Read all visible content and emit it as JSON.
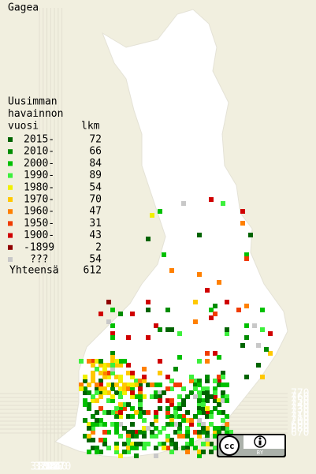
{
  "map": {
    "title": "Gagea",
    "legend": {
      "header": [
        "Uusimman",
        "havainnon",
        "vuosi"
      ],
      "count_header": "lkm",
      "entries": [
        {
          "label": "2015-",
          "count": 72,
          "color": "#006400"
        },
        {
          "label": "2010-",
          "count": 66,
          "color": "#008c00"
        },
        {
          "label": "2000-",
          "count": 84,
          "color": "#00c000"
        },
        {
          "label": "1990-",
          "count": 89,
          "color": "#3cf03c"
        },
        {
          "label": "1980-",
          "count": 54,
          "color": "#f0f000"
        },
        {
          "label": "1970-",
          "count": 70,
          "color": "#ffc800"
        },
        {
          "label": "1960-",
          "count": 47,
          "color": "#ff8000"
        },
        {
          "label": "1950-",
          "count": 31,
          "color": "#f03c00"
        },
        {
          "label": "1900-",
          "count": 43,
          "color": "#d00000"
        },
        {
          "label": "-1899",
          "count": 2,
          "color": "#900000"
        },
        {
          "label": "???",
          "count": 54,
          "color": "#c8c8c8"
        }
      ],
      "total_label": "Yhteensä",
      "total": 612
    },
    "xticks": [
      310,
      320,
      330,
      340,
      350,
      360,
      370
    ],
    "yticks": [
      670,
      680,
      690,
      700,
      710,
      720,
      730,
      740,
      750,
      760,
      770
    ],
    "license": {
      "icon": "cc",
      "label": "BY"
    }
  }
}
